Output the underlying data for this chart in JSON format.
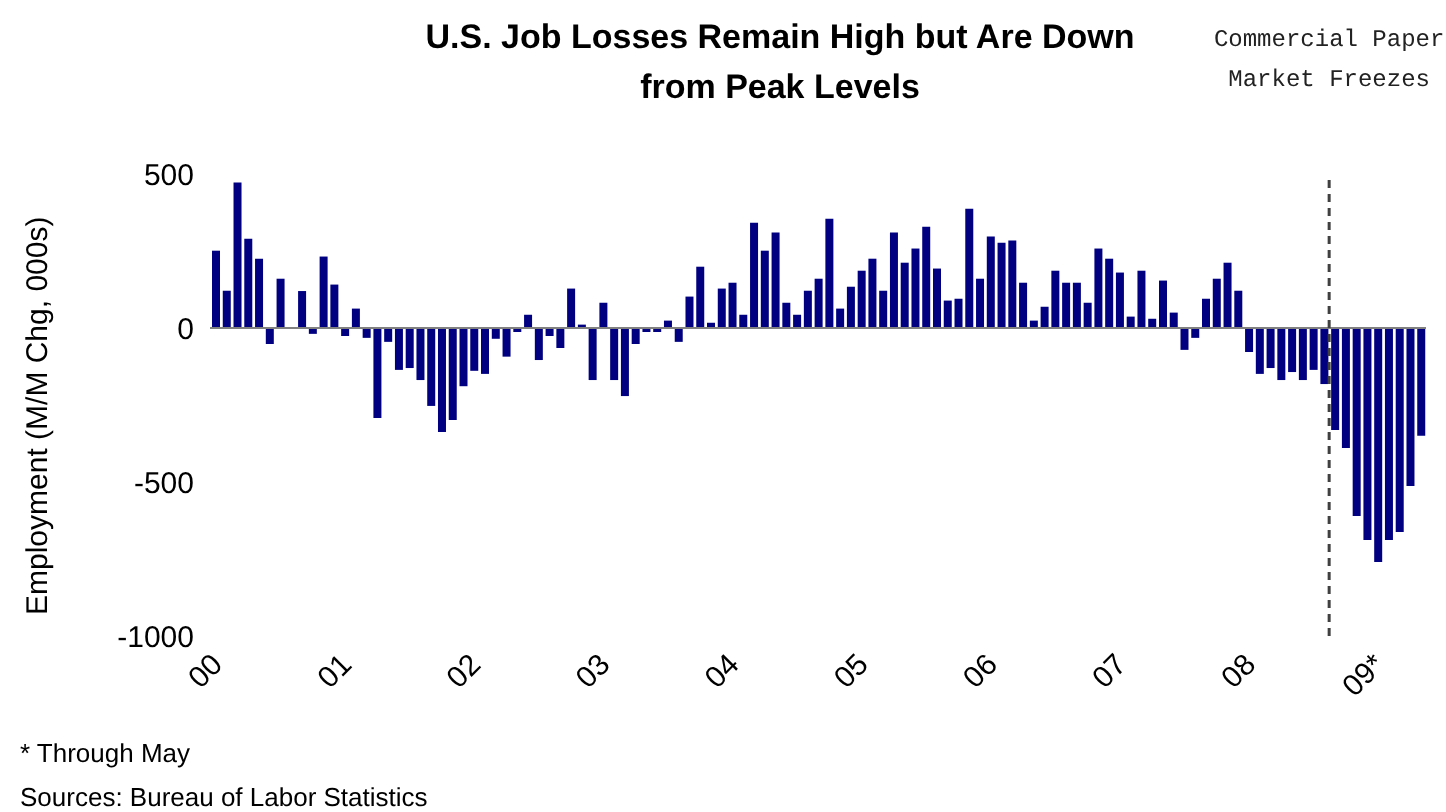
{
  "chart_data": {
    "type": "bar",
    "title": "U.S. Job Losses Remain High but Are Down from Peak Levels",
    "ylabel": "Employment (M/M Chg, 000s)",
    "x": [
      "2000-01",
      "2000-02",
      "2000-03",
      "2000-04",
      "2000-05",
      "2000-06",
      "2000-07",
      "2000-08",
      "2000-09",
      "2000-10",
      "2000-11",
      "2000-12",
      "2001-01",
      "2001-02",
      "2001-03",
      "2001-04",
      "2001-05",
      "2001-06",
      "2001-07",
      "2001-08",
      "2001-09",
      "2001-10",
      "2001-11",
      "2001-12",
      "2002-01",
      "2002-02",
      "2002-03",
      "2002-04",
      "2002-05",
      "2002-06",
      "2002-07",
      "2002-08",
      "2002-09",
      "2002-10",
      "2002-11",
      "2002-12",
      "2003-01",
      "2003-02",
      "2003-03",
      "2003-04",
      "2003-05",
      "2003-06",
      "2003-07",
      "2003-08",
      "2003-09",
      "2003-10",
      "2003-11",
      "2003-12",
      "2004-01",
      "2004-02",
      "2004-03",
      "2004-04",
      "2004-05",
      "2004-06",
      "2004-07",
      "2004-08",
      "2004-09",
      "2004-10",
      "2004-11",
      "2004-12",
      "2005-01",
      "2005-02",
      "2005-03",
      "2005-04",
      "2005-05",
      "2005-06",
      "2005-07",
      "2005-08",
      "2005-09",
      "2005-10",
      "2005-11",
      "2005-12",
      "2006-01",
      "2006-02",
      "2006-03",
      "2006-04",
      "2006-05",
      "2006-06",
      "2006-07",
      "2006-08",
      "2006-09",
      "2006-10",
      "2006-11",
      "2006-12",
      "2007-01",
      "2007-02",
      "2007-03",
      "2007-04",
      "2007-05",
      "2007-06",
      "2007-07",
      "2007-08",
      "2007-09",
      "2007-10",
      "2007-11",
      "2007-12",
      "2008-01",
      "2008-02",
      "2008-03",
      "2008-04",
      "2008-05",
      "2008-06",
      "2008-07",
      "2008-08",
      "2008-09",
      "2008-10",
      "2008-11",
      "2008-12",
      "2009-01",
      "2009-02",
      "2009-03",
      "2009-04",
      "2009-05"
    ],
    "values": [
      251,
      121,
      472,
      290,
      225,
      -52,
      160,
      0,
      120,
      -19,
      232,
      141,
      -26,
      63,
      -32,
      -292,
      -45,
      -136,
      -130,
      -169,
      -253,
      -338,
      -299,
      -189,
      -139,
      -149,
      -35,
      -93,
      -13,
      43,
      -104,
      -26,
      -65,
      128,
      11,
      -169,
      82,
      -169,
      -221,
      -52,
      -13,
      -13,
      24,
      -45,
      102,
      199,
      17,
      128,
      147,
      43,
      342,
      251,
      310,
      82,
      43,
      121,
      160,
      355,
      63,
      134,
      186,
      225,
      121,
      310,
      212,
      258,
      329,
      193,
      89,
      95,
      387,
      160,
      297,
      277,
      284,
      147,
      24,
      69,
      186,
      147,
      147,
      82,
      258,
      225,
      180,
      37,
      186,
      30,
      154,
      50,
      -71,
      -32,
      95,
      160,
      212,
      121,
      -78,
      -149,
      -130,
      -169,
      -143,
      -169,
      -136,
      -182,
      -331,
      -390,
      -610,
      -688,
      -760,
      -688,
      -662,
      -513,
      -350
    ],
    "color": "#000080",
    "xlim": [
      "2000-01",
      "2009-06"
    ],
    "xticks": [
      {
        "value": "2000-01",
        "label": "00"
      },
      {
        "value": "2001-01",
        "label": "01"
      },
      {
        "value": "2002-01",
        "label": "02"
      },
      {
        "value": "2003-01",
        "label": "03"
      },
      {
        "value": "2004-01",
        "label": "04"
      },
      {
        "value": "2005-01",
        "label": "05"
      },
      {
        "value": "2006-01",
        "label": "06"
      },
      {
        "value": "2007-01",
        "label": "07"
      },
      {
        "value": "2008-01",
        "label": "08"
      },
      {
        "value": "2009-01",
        "label": "09*"
      }
    ],
    "ylim": [
      -1000,
      500
    ],
    "yticks": [
      -1000,
      -500,
      0,
      500
    ],
    "grid": false,
    "ref_lines": [
      {
        "axis": "y",
        "value": 0,
        "color": "#808080",
        "line_style": "solid"
      },
      {
        "axis": "x",
        "value": "2008-09",
        "label": "Commercial Paper Market Freezes",
        "color": "#404040",
        "line_style": "dashed"
      }
    ],
    "annotations": [
      "* Through May",
      "Sources: Bureau of Labor Statistics"
    ]
  }
}
